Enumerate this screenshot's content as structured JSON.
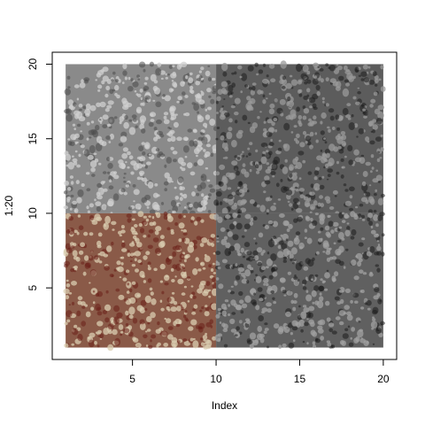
{
  "chart_data": {
    "type": "image-panels",
    "title": "",
    "xlabel": "Index",
    "ylabel": "1:20",
    "xlim": [
      0.2,
      20.8
    ],
    "ylim": [
      0.2,
      20.8
    ],
    "xticks": [
      5,
      10,
      15,
      20
    ],
    "yticks": [
      5,
      10,
      15,
      20
    ],
    "x_tick_labels": [
      "5",
      "10",
      "15",
      "20"
    ],
    "y_tick_labels": [
      "5",
      "10",
      "15",
      "20"
    ],
    "grid": false,
    "legend": "none",
    "panels": [
      {
        "name": "top-left",
        "x": [
          1,
          10
        ],
        "y": [
          10,
          20
        ],
        "tone": "gray",
        "base_color": "#8a8a8a",
        "cell_color": "#cfcfcf",
        "dark_color": "#4a4a4a"
      },
      {
        "name": "top-right",
        "x": [
          10,
          20
        ],
        "y": [
          10,
          20
        ],
        "tone": "dark-gray",
        "base_color": "#5c5c5c",
        "cell_color": "#9a9a9a",
        "dark_color": "#1e1e1e"
      },
      {
        "name": "bottom-left",
        "x": [
          1,
          10
        ],
        "y": [
          1,
          10
        ],
        "tone": "stained",
        "base_color": "#8a5a48",
        "cell_color": "#d9cdb0",
        "dark_color": "#6a1f17"
      },
      {
        "name": "bottom-right",
        "x": [
          10,
          20
        ],
        "y": [
          1,
          10
        ],
        "tone": "dark-gray",
        "base_color": "#606060",
        "cell_color": "#a2a2a2",
        "dark_color": "#1c1c1c"
      }
    ]
  }
}
